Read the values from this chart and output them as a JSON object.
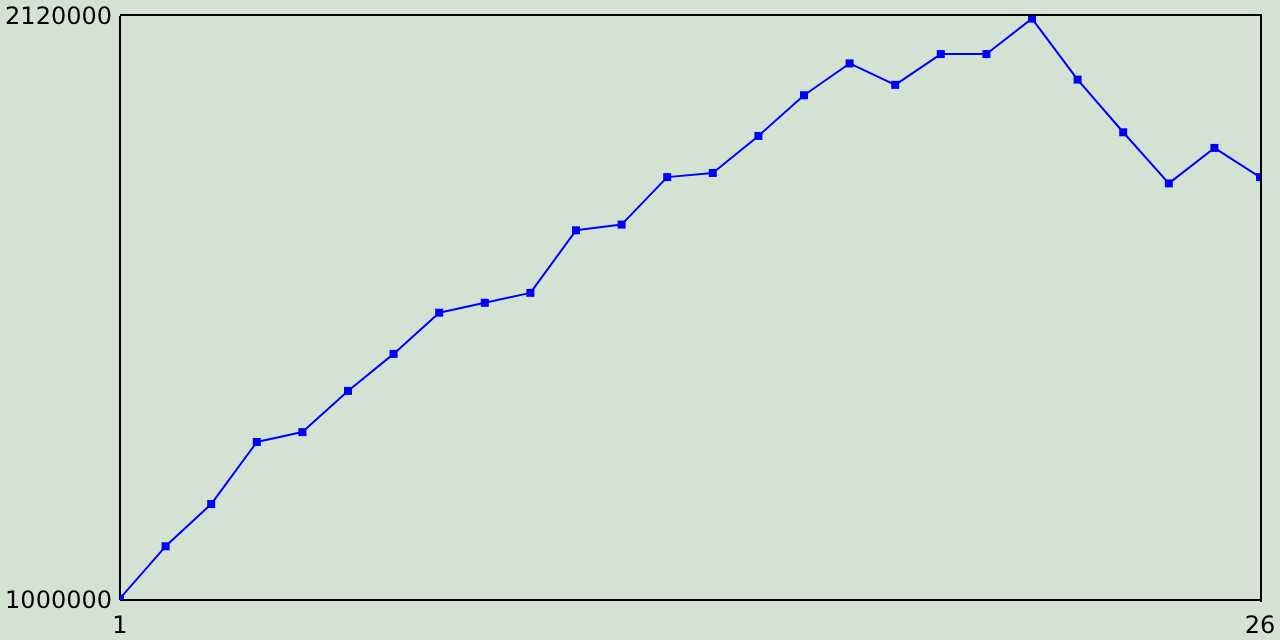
{
  "chart_data": {
    "type": "line",
    "x": [
      1,
      2,
      3,
      4,
      5,
      6,
      7,
      8,
      9,
      10,
      11,
      12,
      13,
      14,
      15,
      16,
      17,
      18,
      19,
      20,
      21,
      22,
      23,
      24,
      25,
      26
    ],
    "series": [
      {
        "color": "#0000ff",
        "values": [
          1003000,
          1103000,
          1184000,
          1303000,
          1322000,
          1401000,
          1472000,
          1551000,
          1570000,
          1589000,
          1709000,
          1720000,
          1811000,
          1819000,
          1890000,
          1968000,
          2029000,
          1988000,
          2047000,
          2047000,
          2115000,
          1998000,
          1897000,
          1799000,
          1867000,
          1811000
        ]
      }
    ],
    "xlim": [
      1,
      26
    ],
    "xticks": [
      1,
      26
    ],
    "ylim": [
      1000000,
      2120000
    ],
    "yticks": [
      1000000,
      2120000
    ],
    "marker": "square",
    "line_style": "solid",
    "grid": false,
    "legend": false
  }
}
